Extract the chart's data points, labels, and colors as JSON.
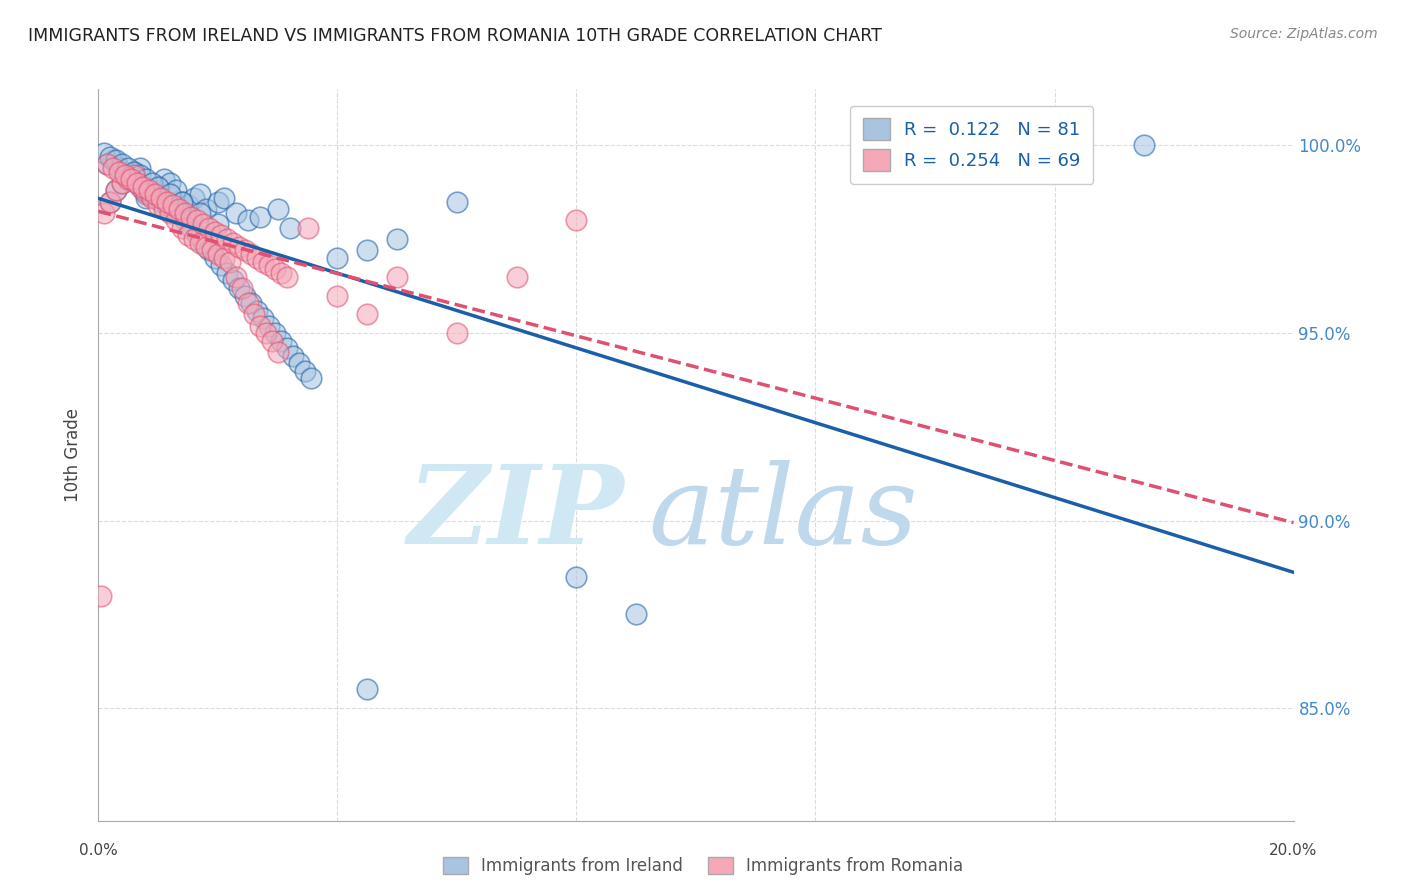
{
  "title": "IMMIGRANTS FROM IRELAND VS IMMIGRANTS FROM ROMANIA 10TH GRADE CORRELATION CHART",
  "source": "Source: ZipAtlas.com",
  "ylabel": "10th Grade",
  "y_ticks": [
    85.0,
    90.0,
    95.0,
    100.0
  ],
  "x_range": [
    0.0,
    20.0
  ],
  "y_range": [
    82.0,
    101.5
  ],
  "ireland_R": 0.122,
  "ireland_N": 81,
  "romania_R": 0.254,
  "romania_N": 69,
  "ireland_color": "#a8c4e0",
  "romania_color": "#f4a8b8",
  "trendline_ireland_color": "#1a5fa8",
  "trendline_romania_color": "#e05070",
  "ireland_scatter_x": [
    0.2,
    0.3,
    0.4,
    0.5,
    0.6,
    0.7,
    0.8,
    0.9,
    1.0,
    1.1,
    1.2,
    1.3,
    1.4,
    1.5,
    1.6,
    1.7,
    1.8,
    2.0,
    2.1,
    2.3,
    2.5,
    2.7,
    3.0,
    3.2,
    4.0,
    4.5,
    5.0,
    6.0,
    8.0,
    9.0,
    17.5,
    0.15,
    0.25,
    0.35,
    0.45,
    0.55,
    0.65,
    0.75,
    0.85,
    0.95,
    1.05,
    1.15,
    1.25,
    1.35,
    1.45,
    1.55,
    1.65,
    1.75,
    1.85,
    1.95,
    2.05,
    2.15,
    2.25,
    2.35,
    2.45,
    2.55,
    2.65,
    2.75,
    2.85,
    2.95,
    3.05,
    3.15,
    3.25,
    3.35,
    3.45,
    3.55,
    0.1,
    0.2,
    0.3,
    0.4,
    0.5,
    0.6,
    0.7,
    0.8,
    0.9,
    1.0,
    1.2,
    1.4,
    1.7,
    2.0,
    4.5
  ],
  "ireland_scatter_y": [
    98.5,
    98.8,
    99.0,
    99.2,
    99.3,
    99.4,
    98.6,
    98.7,
    98.9,
    99.1,
    99.0,
    98.8,
    98.5,
    98.4,
    98.6,
    98.7,
    98.3,
    98.5,
    98.6,
    98.2,
    98.0,
    98.1,
    98.3,
    97.8,
    97.0,
    97.2,
    97.5,
    98.5,
    88.5,
    87.5,
    100.0,
    99.5,
    99.6,
    99.4,
    99.3,
    99.2,
    99.0,
    98.8,
    98.7,
    98.6,
    98.5,
    98.4,
    98.3,
    98.2,
    98.0,
    97.8,
    97.6,
    97.4,
    97.2,
    97.0,
    96.8,
    96.6,
    96.4,
    96.2,
    96.0,
    95.8,
    95.6,
    95.4,
    95.2,
    95.0,
    94.8,
    94.6,
    94.4,
    94.2,
    94.0,
    93.8,
    99.8,
    99.7,
    99.6,
    99.5,
    99.4,
    99.3,
    99.2,
    99.1,
    99.0,
    98.9,
    98.7,
    98.5,
    98.2,
    97.9,
    85.5
  ],
  "romania_scatter_x": [
    0.1,
    0.2,
    0.3,
    0.4,
    0.5,
    0.6,
    0.7,
    0.8,
    0.9,
    1.0,
    1.1,
    1.2,
    1.3,
    1.4,
    1.5,
    1.6,
    1.7,
    1.8,
    1.9,
    2.0,
    2.1,
    2.2,
    2.3,
    2.4,
    2.5,
    2.6,
    2.7,
    2.8,
    2.9,
    3.0,
    3.5,
    4.0,
    4.5,
    5.0,
    6.0,
    7.0,
    8.0,
    0.15,
    0.25,
    0.35,
    0.45,
    0.55,
    0.65,
    0.75,
    0.85,
    0.95,
    1.05,
    1.15,
    1.25,
    1.35,
    1.45,
    1.55,
    1.65,
    1.75,
    1.85,
    1.95,
    2.05,
    2.15,
    2.25,
    2.35,
    2.45,
    2.55,
    2.65,
    2.75,
    2.85,
    2.95,
    3.05,
    3.15,
    0.05
  ],
  "romania_scatter_y": [
    98.2,
    98.5,
    98.8,
    99.0,
    99.1,
    99.2,
    98.9,
    98.7,
    98.6,
    98.4,
    98.3,
    98.2,
    98.0,
    97.8,
    97.6,
    97.5,
    97.4,
    97.3,
    97.2,
    97.1,
    97.0,
    96.9,
    96.5,
    96.2,
    95.8,
    95.5,
    95.2,
    95.0,
    94.8,
    94.5,
    97.8,
    96.0,
    95.5,
    96.5,
    95.0,
    96.5,
    98.0,
    99.5,
    99.4,
    99.3,
    99.2,
    99.1,
    99.0,
    98.9,
    98.8,
    98.7,
    98.6,
    98.5,
    98.4,
    98.3,
    98.2,
    98.1,
    98.0,
    97.9,
    97.8,
    97.7,
    97.6,
    97.5,
    97.4,
    97.3,
    97.2,
    97.1,
    97.0,
    96.9,
    96.8,
    96.7,
    96.6,
    96.5,
    88.0
  ]
}
